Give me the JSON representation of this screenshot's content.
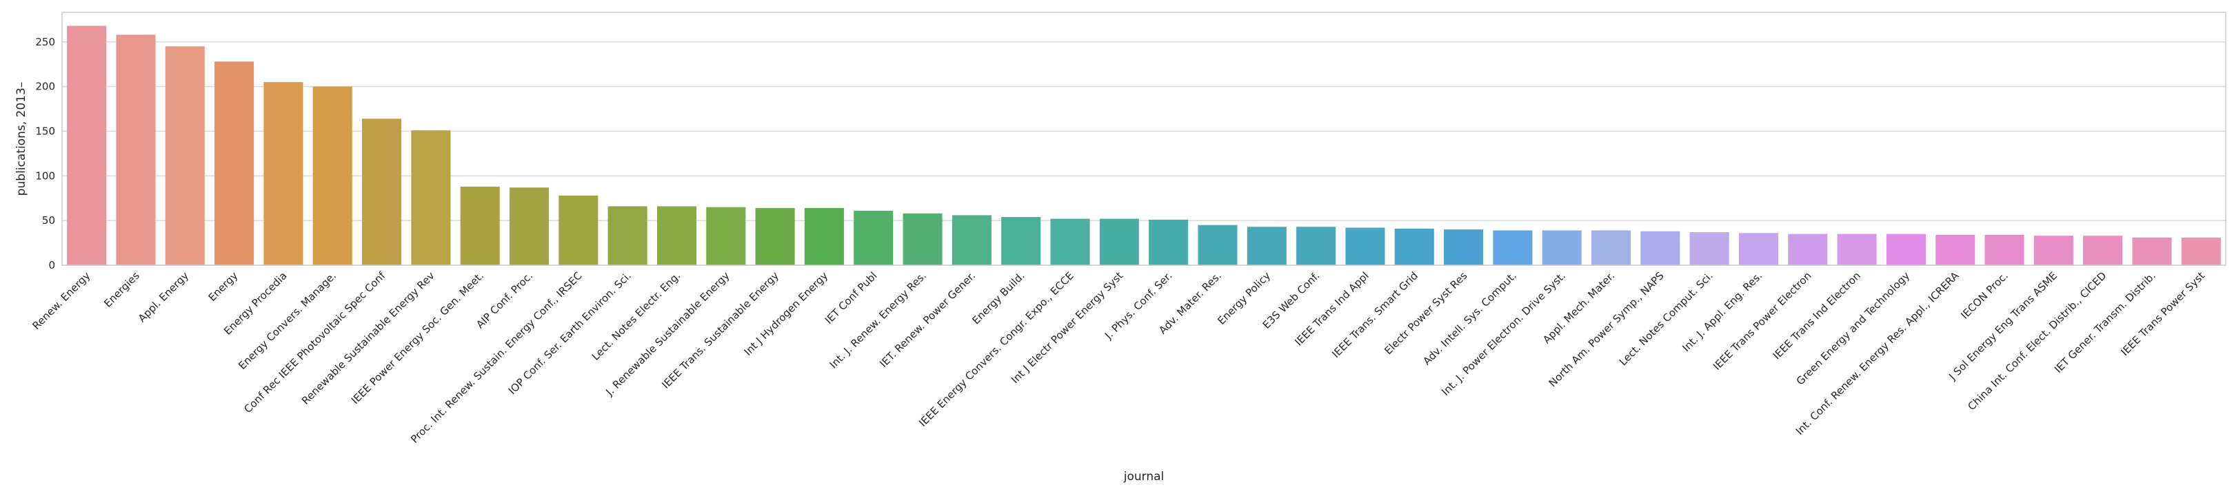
{
  "chart_data": {
    "type": "bar",
    "xlabel": "journal",
    "ylabel": "publications, 2013–",
    "ylim": [
      0,
      283
    ],
    "yticks": [
      0,
      50,
      100,
      150,
      200,
      250
    ],
    "grid": "horizontal",
    "legend": "none",
    "categories": [
      "Renew. Energy",
      "Energies",
      "Appl. Energy",
      "Energy",
      "Energy Procedia",
      "Energy Convers. Manage.",
      "Conf Rec IEEE Photovoltaic Spec Conf",
      "Renewable Sustainable Energy Rev",
      "IEEE Power Energy Soc. Gen. Meet.",
      "AIP Conf. Proc.",
      "Proc. Int. Renew. Sustain. Energy Conf., IRSEC",
      "IOP Conf. Ser. Earth Environ. Sci.",
      "Lect. Notes Electr. Eng.",
      "J. Renewable Sustainable Energy",
      "IEEE Trans. Sustainable Energy",
      "Int J Hydrogen Energy",
      "IET Conf Publ",
      "Int. J. Renew. Energy Res.",
      "IET. Renew. Power Gener.",
      "Energy Build.",
      "IEEE Energy Convers. Congr. Expo., ECCE",
      "Int J Electr Power Energy Syst",
      "J. Phys. Conf. Ser.",
      "Adv. Mater. Res.",
      "Energy Policy",
      "E3S Web Conf.",
      "IEEE Trans Ind Appl",
      "IEEE Trans. Smart Grid",
      "Electr Power Syst Res",
      "Adv. Intell. Sys. Comput.",
      "Int. J. Power Electron. Drive Syst.",
      "Appl. Mech. Mater.",
      "North Am. Power Symp., NAPS",
      "Lect. Notes Comput. Sci.",
      "Int. J. Appl. Eng. Res.",
      "IEEE Trans Power Electron",
      "IEEE Trans Ind Electron",
      "Green Energy and Technology",
      "Int. Conf. Renew. Energy Res. Appl., ICRERA",
      "IECON Proc.",
      "J Sol Energy Eng Trans ASME",
      "China Int. Conf. Elect. Distrib., CICED",
      "IET Gener. Transm. Distrib.",
      "IEEE Trans Power Syst"
    ],
    "values": [
      268,
      258,
      245,
      228,
      205,
      200,
      164,
      151,
      88,
      87,
      78,
      66,
      66,
      65,
      64,
      64,
      61,
      58,
      56,
      54,
      52,
      52,
      51,
      45,
      43,
      43,
      42,
      41,
      40,
      39,
      39,
      39,
      38,
      37,
      36,
      35,
      35,
      35,
      34,
      34,
      33,
      33,
      31,
      31
    ],
    "colors": [
      "#e8949a",
      "#e8978c",
      "#e69a82",
      "#e39268",
      "#dc9b52",
      "#d49b48",
      "#be9f48",
      "#b9a345",
      "#a9a243",
      "#a4a344",
      "#9ea644",
      "#93a845",
      "#8aaa43",
      "#7cac46",
      "#6cad4a",
      "#54ad4e",
      "#53b069",
      "#52b075",
      "#4fb18a",
      "#4cb097",
      "#4aaf9e",
      "#48aea3",
      "#47adaa",
      "#48abb3",
      "#49a9b9",
      "#4aa8be",
      "#47a6c3",
      "#48a4ca",
      "#4ca1d2",
      "#60a6e4",
      "#83aee8",
      "#a0b1e6",
      "#abaded",
      "#bcaaeb",
      "#c3a6ee",
      "#cd9ceb",
      "#d898e8",
      "#e18de8",
      "#e589d6",
      "#e58bcc",
      "#e78ec6",
      "#e88fbd",
      "#e890b5",
      "#e993ac"
    ]
  }
}
